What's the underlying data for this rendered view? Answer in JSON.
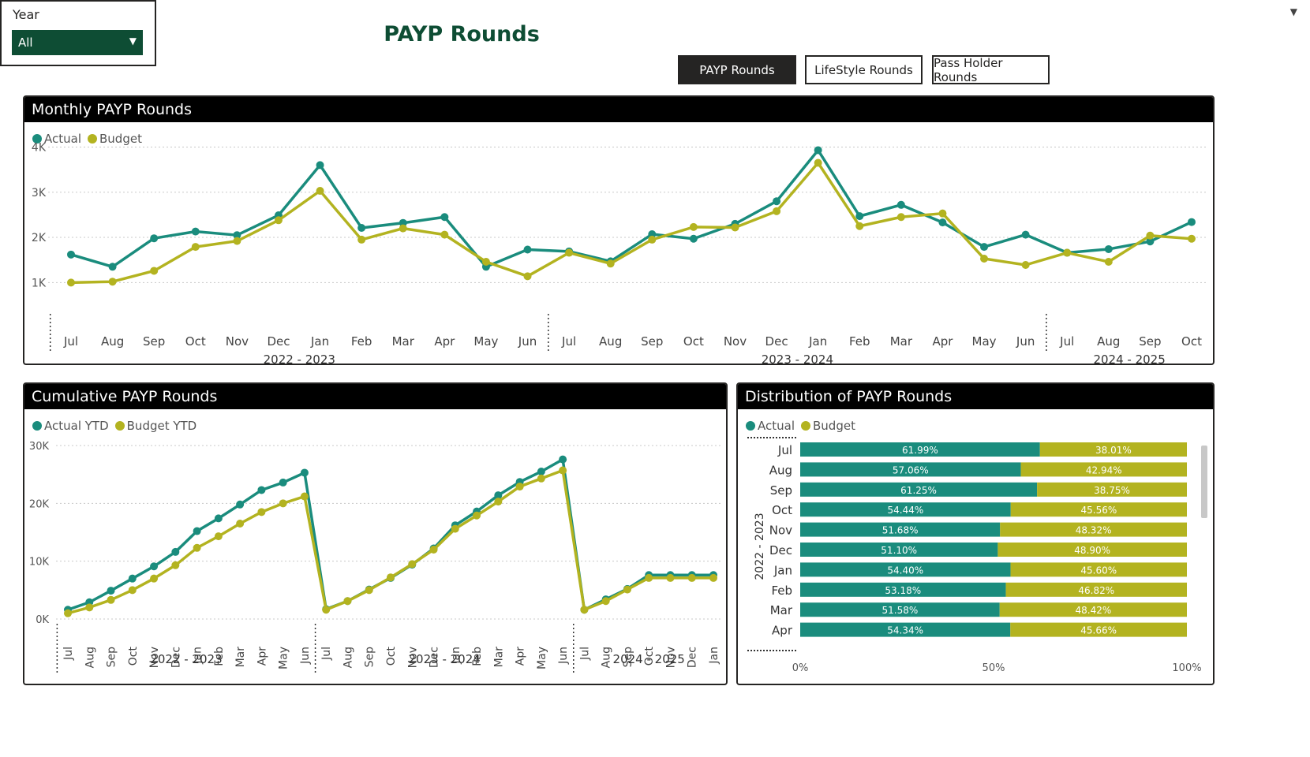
{
  "page_title": "PAYP Rounds",
  "nav_buttons": [
    {
      "label": "PAYP Rounds",
      "active": true
    },
    {
      "label": "LifeStyle Rounds",
      "active": false
    },
    {
      "label": "Pass Holder Rounds",
      "active": false
    }
  ],
  "year_slicer": {
    "label": "Year",
    "selected": "All"
  },
  "colors": {
    "actual": "#1a8c7d",
    "budget": "#b3b320",
    "header": "#000000",
    "title": "#0e4d34"
  },
  "icons": {
    "slicer_chevron": "chevron-down-icon"
  },
  "monthly_chart": {
    "title": "Monthly PAYP Rounds",
    "legend": [
      "Actual",
      "Budget"
    ],
    "chart_data": {
      "type": "line",
      "title": "Monthly PAYP Rounds",
      "xlabel": "",
      "ylabel": "",
      "ylim": [
        500,
        4200
      ],
      "yticks": [
        1000,
        2000,
        3000,
        4000
      ],
      "ytick_labels": [
        "1K",
        "2K",
        "3K",
        "4K"
      ],
      "categories": [
        "Jul",
        "Aug",
        "Sep",
        "Oct",
        "Nov",
        "Dec",
        "Jan",
        "Feb",
        "Mar",
        "Apr",
        "May",
        "Jun",
        "Jul",
        "Aug",
        "Sep",
        "Oct",
        "Nov",
        "Dec",
        "Jan",
        "Feb",
        "Mar",
        "Apr",
        "May",
        "Jun",
        "Jul",
        "Aug",
        "Sep",
        "Oct"
      ],
      "groups": [
        {
          "label": "2022 - 2023",
          "start": 0,
          "end": 11
        },
        {
          "label": "2023 - 2024",
          "start": 12,
          "end": 23
        },
        {
          "label": "2024 - 2025",
          "start": 24,
          "end": 27
        }
      ],
      "series": [
        {
          "name": "Actual",
          "values": [
            1620,
            1350,
            1980,
            2130,
            2050,
            2490,
            3600,
            2210,
            2320,
            2450,
            1350,
            1730,
            1690,
            1470,
            2070,
            1970,
            2300,
            2800,
            3930,
            2470,
            2720,
            2330,
            1790,
            2060,
            1660,
            1740,
            1910,
            2340
          ]
        },
        {
          "name": "Budget",
          "values": [
            1000,
            1020,
            1260,
            1790,
            1920,
            2380,
            3030,
            1950,
            2200,
            2060,
            1460,
            1140,
            1660,
            1420,
            1950,
            2230,
            2220,
            2580,
            3650,
            2250,
            2450,
            2530,
            1530,
            1390,
            1660,
            1460,
            2040,
            1970
          ]
        }
      ]
    }
  },
  "cumulative_chart": {
    "title": "Cumulative PAYP Rounds",
    "legend": [
      "Actual YTD",
      "Budget YTD"
    ],
    "chart_data": {
      "type": "line",
      "title": "Cumulative PAYP Rounds",
      "xlabel": "",
      "ylabel": "",
      "ylim": [
        0,
        30000
      ],
      "yticks": [
        0,
        10000,
        20000,
        30000
      ],
      "ytick_labels": [
        "0K",
        "10K",
        "20K",
        "30K"
      ],
      "categories": [
        "Jul",
        "Aug",
        "Sep",
        "Oct",
        "Nov",
        "Dec",
        "Jan",
        "Feb",
        "Mar",
        "Apr",
        "May",
        "Jun",
        "Jul",
        "Aug",
        "Sep",
        "Oct",
        "Nov",
        "Dec",
        "Jan",
        "Feb",
        "Mar",
        "Apr",
        "May",
        "Jun",
        "Jul",
        "Aug",
        "Sep",
        "Oct",
        "Nov",
        "Dec",
        "Jan"
      ],
      "groups": [
        {
          "label": "2022 - 2023",
          "start": 0,
          "end": 11
        },
        {
          "label": "2023 - 2024",
          "start": 12,
          "end": 23
        },
        {
          "label": "2024 - 2025",
          "start": 24,
          "end": 30
        }
      ],
      "series": [
        {
          "name": "Actual YTD",
          "values": [
            1600,
            2900,
            4900,
            7000,
            9100,
            11600,
            15200,
            17400,
            19800,
            22300,
            23600,
            25300,
            1700,
            3100,
            5100,
            7100,
            9400,
            12200,
            16200,
            18600,
            21400,
            23700,
            25500,
            27600,
            1600,
            3400,
            5200,
            7600,
            7600,
            7600,
            7600
          ]
        },
        {
          "name": "Budget YTD",
          "values": [
            1000,
            2000,
            3300,
            5000,
            7000,
            9300,
            12300,
            14300,
            16500,
            18500,
            20000,
            21200,
            1600,
            3100,
            5000,
            7200,
            9500,
            12000,
            15600,
            17900,
            20300,
            22900,
            24300,
            25700,
            1600,
            3100,
            5100,
            7100,
            7100,
            7100,
            7100
          ]
        }
      ]
    }
  },
  "distribution_chart": {
    "title": "Distribution of PAYP Rounds",
    "legend": [
      "Actual",
      "Budget"
    ],
    "chart_data": {
      "type": "bar",
      "orientation": "horizontal-stacked-100",
      "title": "Distribution of PAYP Rounds",
      "xlim": [
        0,
        100
      ],
      "xticks": [
        0,
        50,
        100
      ],
      "xtick_labels": [
        "0%",
        "50%",
        "100%"
      ],
      "group_label": "2022 - 2023",
      "categories": [
        "Jul",
        "Aug",
        "Sep",
        "Oct",
        "Nov",
        "Dec",
        "Jan",
        "Feb",
        "Mar",
        "Apr"
      ],
      "series": [
        {
          "name": "Actual",
          "values": [
            61.99,
            57.06,
            61.25,
            54.44,
            51.68,
            51.1,
            54.4,
            53.18,
            51.58,
            54.34
          ],
          "labels": [
            "61.99%",
            "57.06%",
            "61.25%",
            "54.44%",
            "51.68%",
            "51.10%",
            "54.40%",
            "53.18%",
            "51.58%",
            "54.34%"
          ]
        },
        {
          "name": "Budget",
          "values": [
            38.01,
            42.94,
            38.75,
            45.56,
            48.32,
            48.9,
            45.6,
            46.82,
            48.42,
            45.66
          ],
          "labels": [
            "38.01%",
            "42.94%",
            "38.75%",
            "45.56%",
            "48.32%",
            "48.90%",
            "45.60%",
            "46.82%",
            "48.42%",
            "45.66%"
          ]
        }
      ]
    }
  }
}
